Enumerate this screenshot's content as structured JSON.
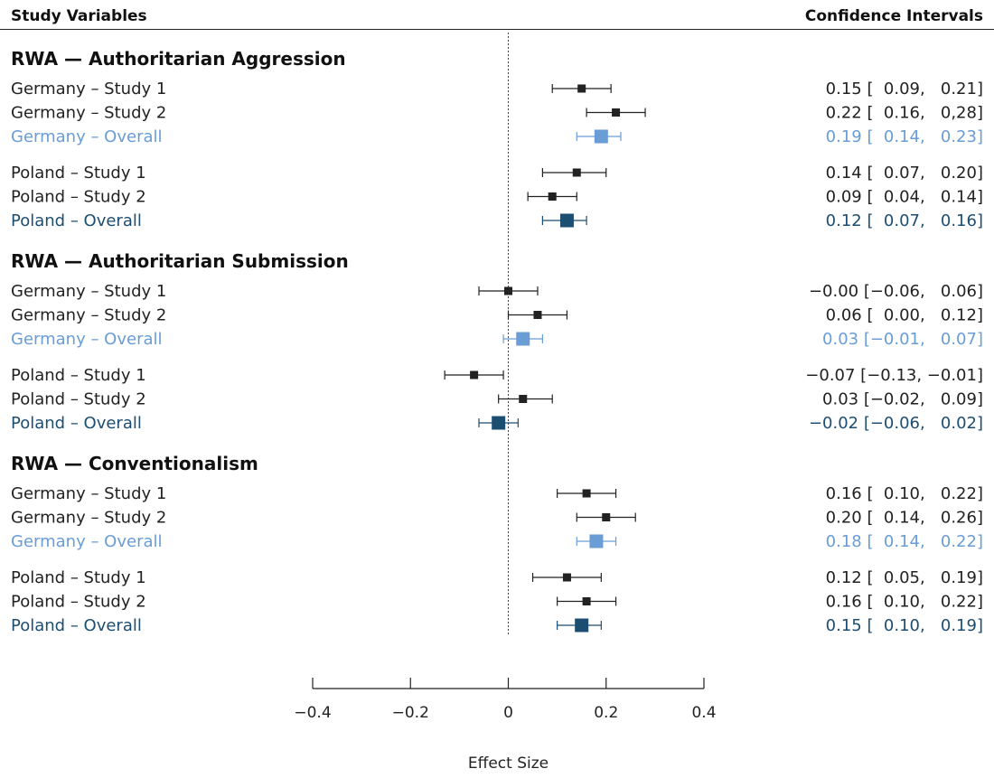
{
  "header": {
    "left": "Study Variables",
    "right": "Confidence Intervals"
  },
  "colors": {
    "study": "#222222",
    "germany_overall": "#6a9cd6",
    "poland_overall": "#1c4e72",
    "axis": "#222222"
  },
  "chart_data": {
    "type": "forest",
    "xlabel": "Effect Size",
    "xlim": [
      -0.4,
      0.4
    ],
    "xticks": [
      -0.4,
      -0.2,
      0,
      0.2,
      0.4
    ],
    "xtick_labels": [
      "−0.4",
      "−0.2",
      "0",
      "0.2",
      "0.4"
    ],
    "reference_line": 0,
    "groups": [
      {
        "title": "RWA — Authoritarian Aggression",
        "rows": [
          {
            "label": "Germany – Study 1",
            "est": 0.15,
            "lo": 0.09,
            "hi": 0.21,
            "kind": "study",
            "ci_text": "0.15 [  0.09,   0.21]"
          },
          {
            "label": "Germany – Study 2",
            "est": 0.22,
            "lo": 0.16,
            "hi": 0.28,
            "kind": "study",
            "ci_text": "0.22 [  0.16,   0,28]"
          },
          {
            "label": "Germany – Overall",
            "est": 0.19,
            "lo": 0.14,
            "hi": 0.23,
            "kind": "germany_overall",
            "ci_text": "0.19 [  0.14,   0.23]"
          },
          {
            "label": "Poland – Study 1",
            "est": 0.14,
            "lo": 0.07,
            "hi": 0.2,
            "kind": "study",
            "ci_text": "0.14 [  0.07,   0.20]"
          },
          {
            "label": "Poland – Study 2",
            "est": 0.09,
            "lo": 0.04,
            "hi": 0.14,
            "kind": "study",
            "ci_text": "0.09 [  0.04,   0.14]"
          },
          {
            "label": "Poland – Overall",
            "est": 0.12,
            "lo": 0.07,
            "hi": 0.16,
            "kind": "poland_overall",
            "ci_text": "0.12 [  0.07,   0.16]"
          }
        ]
      },
      {
        "title": "RWA — Authoritarian Submission",
        "rows": [
          {
            "label": "Germany – Study 1",
            "est": 0.0,
            "lo": -0.06,
            "hi": 0.06,
            "kind": "study",
            "ci_text": "−0.00 [−0.06,   0.06]"
          },
          {
            "label": "Germany – Study 2",
            "est": 0.06,
            "lo": 0.0,
            "hi": 0.12,
            "kind": "study",
            "ci_text": "0.06 [  0.00,   0.12]"
          },
          {
            "label": "Germany – Overall",
            "est": 0.03,
            "lo": -0.01,
            "hi": 0.07,
            "kind": "germany_overall",
            "ci_text": "0.03 [−0.01,   0.07]"
          },
          {
            "label": "Poland – Study 1",
            "est": -0.07,
            "lo": -0.13,
            "hi": -0.01,
            "kind": "study",
            "ci_text": "−0.07 [−0.13, −0.01]"
          },
          {
            "label": "Poland – Study 2",
            "est": 0.03,
            "lo": -0.02,
            "hi": 0.09,
            "kind": "study",
            "ci_text": "0.03 [−0.02,   0.09]"
          },
          {
            "label": "Poland – Overall",
            "est": -0.02,
            "lo": -0.06,
            "hi": 0.02,
            "kind": "poland_overall",
            "ci_text": "−0.02 [−0.06,   0.02]"
          }
        ]
      },
      {
        "title": "RWA — Conventionalism",
        "rows": [
          {
            "label": "Germany – Study 1",
            "est": 0.16,
            "lo": 0.1,
            "hi": 0.22,
            "kind": "study",
            "ci_text": "0.16 [  0.10,   0.22]"
          },
          {
            "label": "Germany – Study 2",
            "est": 0.2,
            "lo": 0.14,
            "hi": 0.26,
            "kind": "study",
            "ci_text": "0.20 [  0.14,   0.26]"
          },
          {
            "label": "Germany – Overall",
            "est": 0.18,
            "lo": 0.14,
            "hi": 0.22,
            "kind": "germany_overall",
            "ci_text": "0.18 [  0.14,   0.22]"
          },
          {
            "label": "Poland – Study 1",
            "est": 0.12,
            "lo": 0.05,
            "hi": 0.19,
            "kind": "study",
            "ci_text": "0.12 [  0.05,   0.19]"
          },
          {
            "label": "Poland – Study 2",
            "est": 0.16,
            "lo": 0.1,
            "hi": 0.22,
            "kind": "study",
            "ci_text": "0.16 [  0.10,   0.22]"
          },
          {
            "label": "Poland – Overall",
            "est": 0.15,
            "lo": 0.1,
            "hi": 0.19,
            "kind": "poland_overall",
            "ci_text": "0.15 [  0.10,   0.19]"
          }
        ]
      }
    ]
  }
}
